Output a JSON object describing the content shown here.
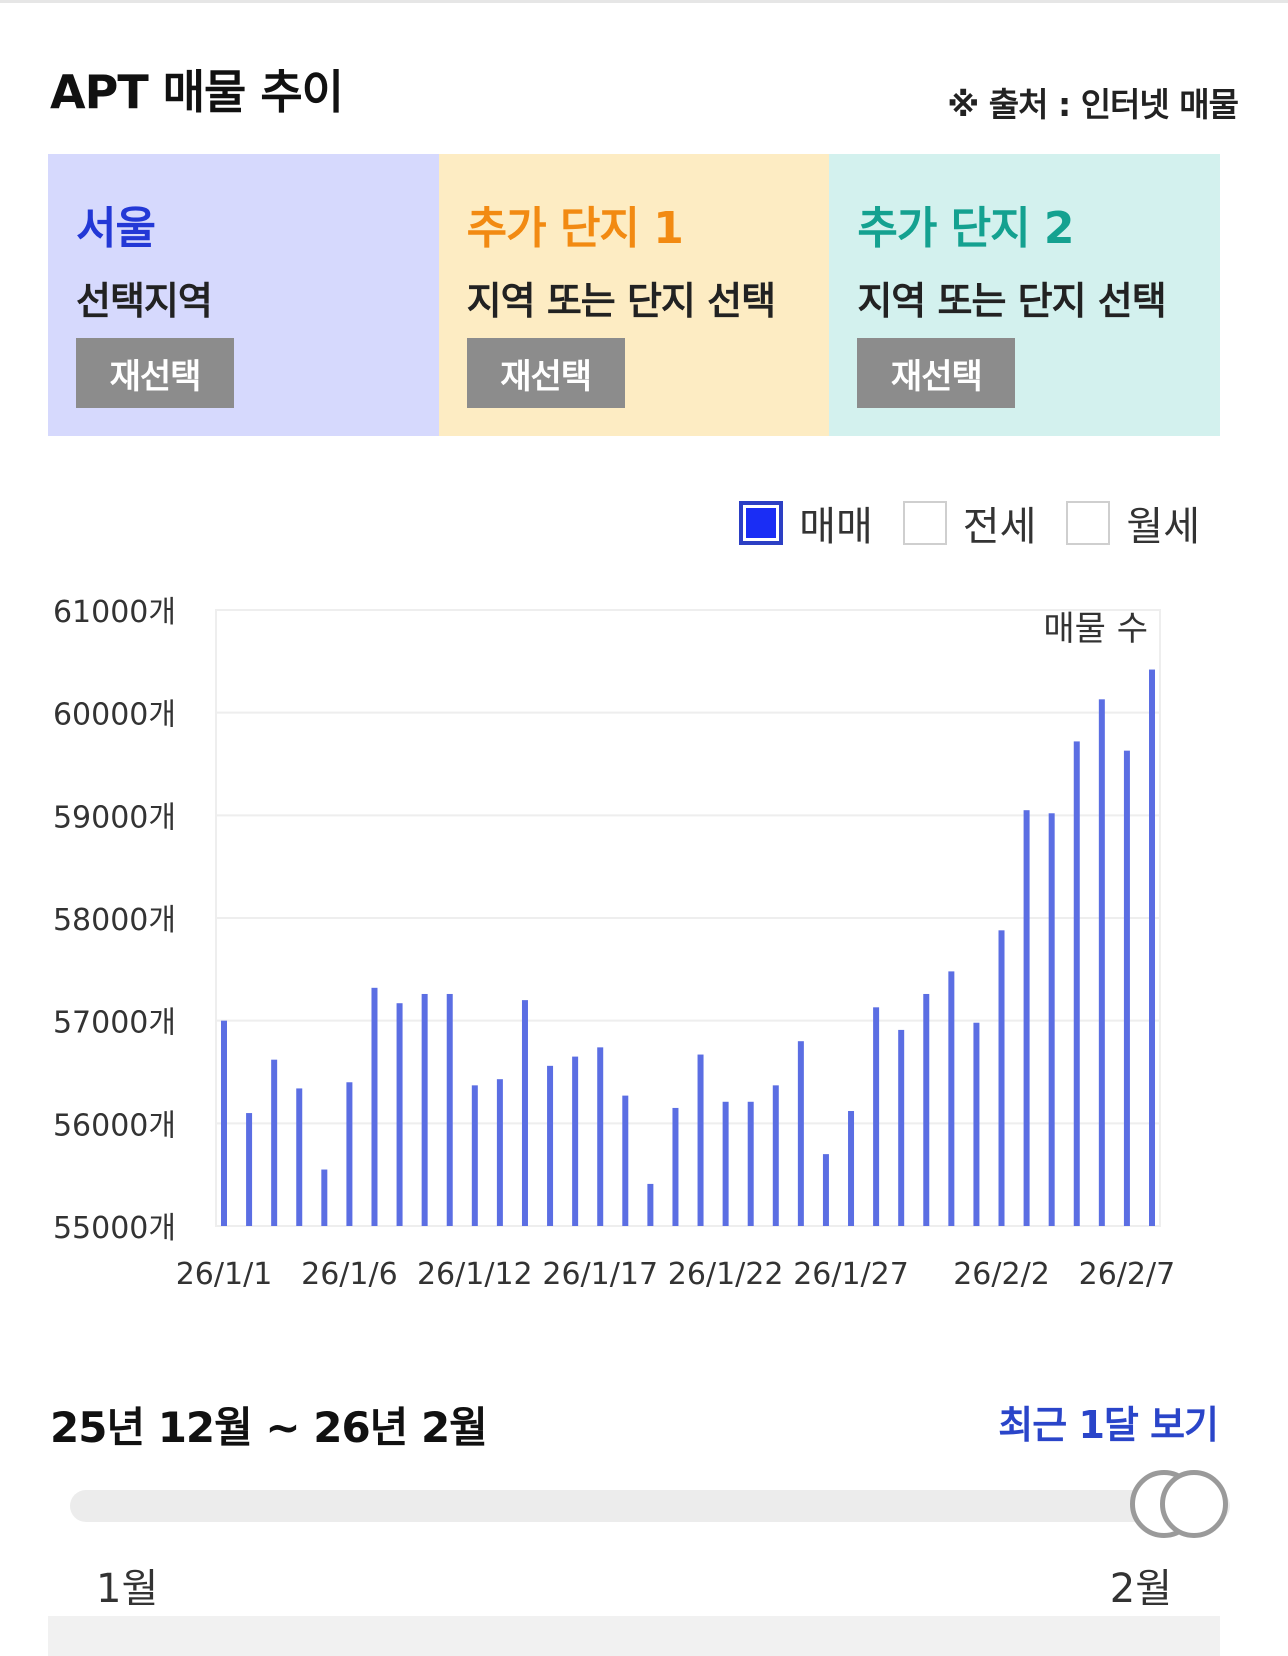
{
  "header": {
    "title": "APT 매물 추이",
    "source": "※ 출처 : 인터넷 매물"
  },
  "panels": [
    {
      "title": "서울",
      "subtitle": "선택지역",
      "button": "재선택"
    },
    {
      "title": "추가 단지 1",
      "subtitle": "지역 또는 단지 선택",
      "button": "재선택"
    },
    {
      "title": "추가 단지 2",
      "subtitle": "지역 또는 단지 선택",
      "button": "재선택"
    }
  ],
  "legend": {
    "items": [
      {
        "label": "매매",
        "checked": true
      },
      {
        "label": "전세",
        "checked": false
      },
      {
        "label": "월세",
        "checked": false
      }
    ]
  },
  "colors": {
    "bar": "#5b6ee3",
    "panel_seoul": "#d6d9fd",
    "panel_complex1": "#fdecc3",
    "panel_complex2": "#d3f1ee",
    "link": "#2a45c9"
  },
  "chart_data": {
    "type": "bar",
    "series_label": "매물 수",
    "ylim": [
      55000,
      61000
    ],
    "yticks": [
      61000,
      60000,
      59000,
      58000,
      57000,
      56000,
      55000
    ],
    "ytick_suffix": "개",
    "xtick_labels": [
      "26/1/1",
      "26/1/6",
      "26/1/12",
      "26/1/17",
      "26/1/22",
      "26/1/27",
      "26/2/2",
      "26/2/7"
    ],
    "values": [
      57000,
      56100,
      56620,
      56340,
      55550,
      56400,
      57320,
      57170,
      57260,
      57260,
      56370,
      56430,
      57200,
      56560,
      56650,
      56740,
      56270,
      55410,
      56150,
      56670,
      56210,
      56210,
      56370,
      56800,
      55700,
      56120,
      57130,
      56910,
      57260,
      57480,
      56980,
      57880,
      59050,
      59020,
      59720,
      60130,
      59630,
      60420
    ],
    "grid": true
  },
  "range": {
    "label": "25년 12월 ~ 26년 2월",
    "recent_link": "최근 1달 보기",
    "min_label": "1월",
    "max_label": "2월",
    "start_position": 0.97,
    "end_position": 1.0
  },
  "bottom": {
    "text": ""
  }
}
